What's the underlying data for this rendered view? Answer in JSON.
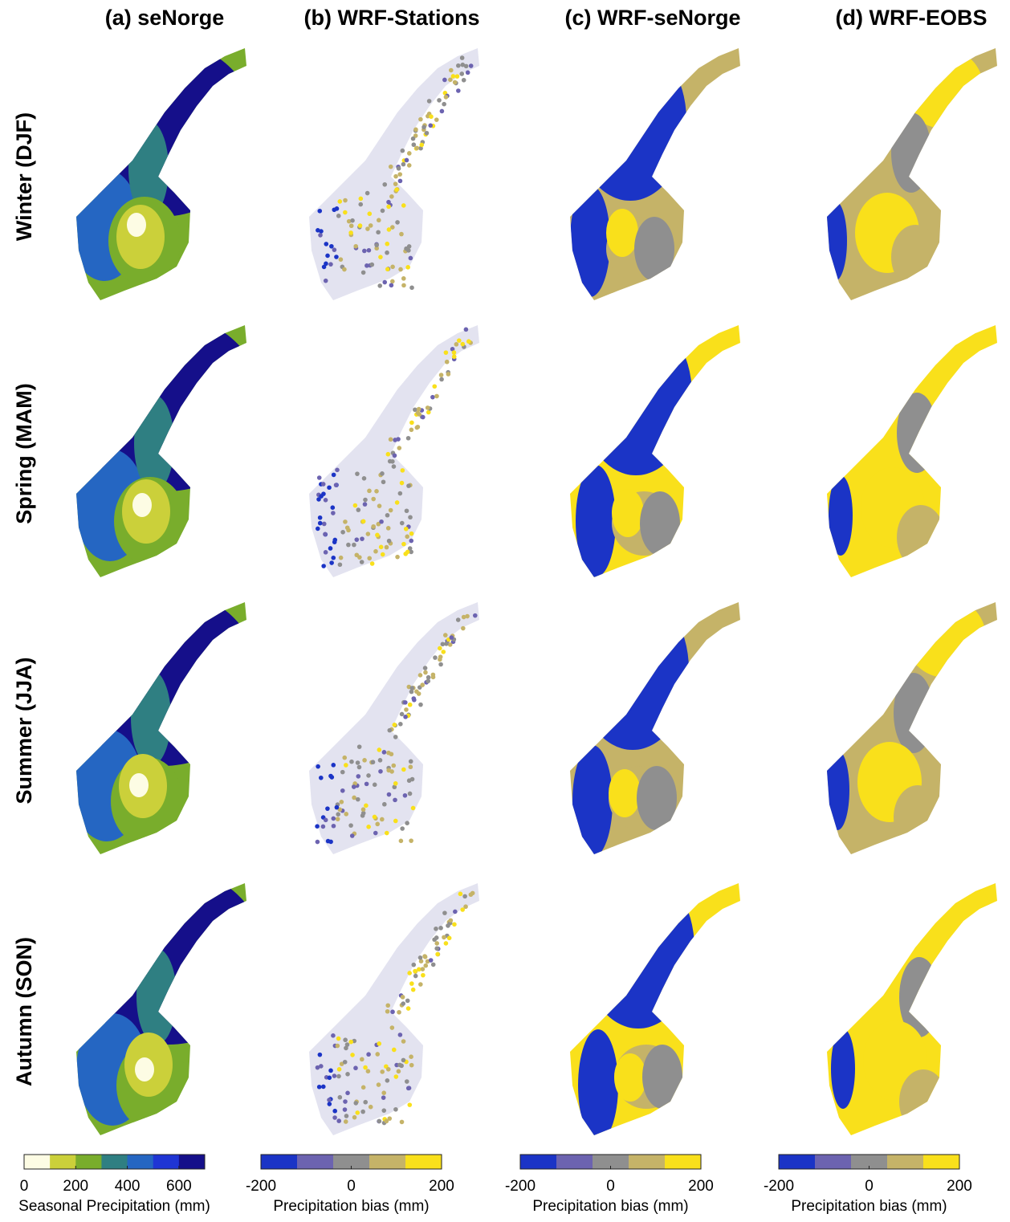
{
  "columns": [
    "(a) seNorge",
    "(b) WRF-Stations",
    "(c) WRF-seNorge",
    "(d) WRF-EOBS"
  ],
  "rows": [
    "Winter (DJF)",
    "Spring (MAM)",
    "Summer (JJA)",
    "Autumn (SON)"
  ],
  "colorbars": [
    {
      "label": "Seasonal Precipitation (mm)",
      "lim": [
        0,
        700
      ],
      "ticks": [
        0,
        200,
        400,
        600
      ],
      "colors": [
        "#fdfce4",
        "#cbd03a",
        "#79ad2c",
        "#2f7f82",
        "#2566c2",
        "#1f35d4",
        "#150f8a"
      ]
    },
    {
      "label": "Precipitation bias (mm)",
      "lim": [
        -200,
        200
      ],
      "ticks": [
        -200,
        0,
        200
      ],
      "colors": [
        "#1b34c6",
        "#6c63b0",
        "#8f8f8f",
        "#c5b368",
        "#f9e01b"
      ]
    },
    {
      "label": "Precipitation bias (mm)",
      "lim": [
        -200,
        200
      ],
      "ticks": [
        -200,
        0,
        200
      ],
      "colors": [
        "#1b34c6",
        "#6c63b0",
        "#8f8f8f",
        "#c5b368",
        "#f9e01b"
      ]
    },
    {
      "label": "Precipitation bias (mm)",
      "lim": [
        -200,
        200
      ],
      "ticks": [
        -200,
        0,
        200
      ],
      "colors": [
        "#1b34c6",
        "#6c63b0",
        "#8f8f8f",
        "#c5b368",
        "#f9e01b"
      ]
    }
  ]
}
